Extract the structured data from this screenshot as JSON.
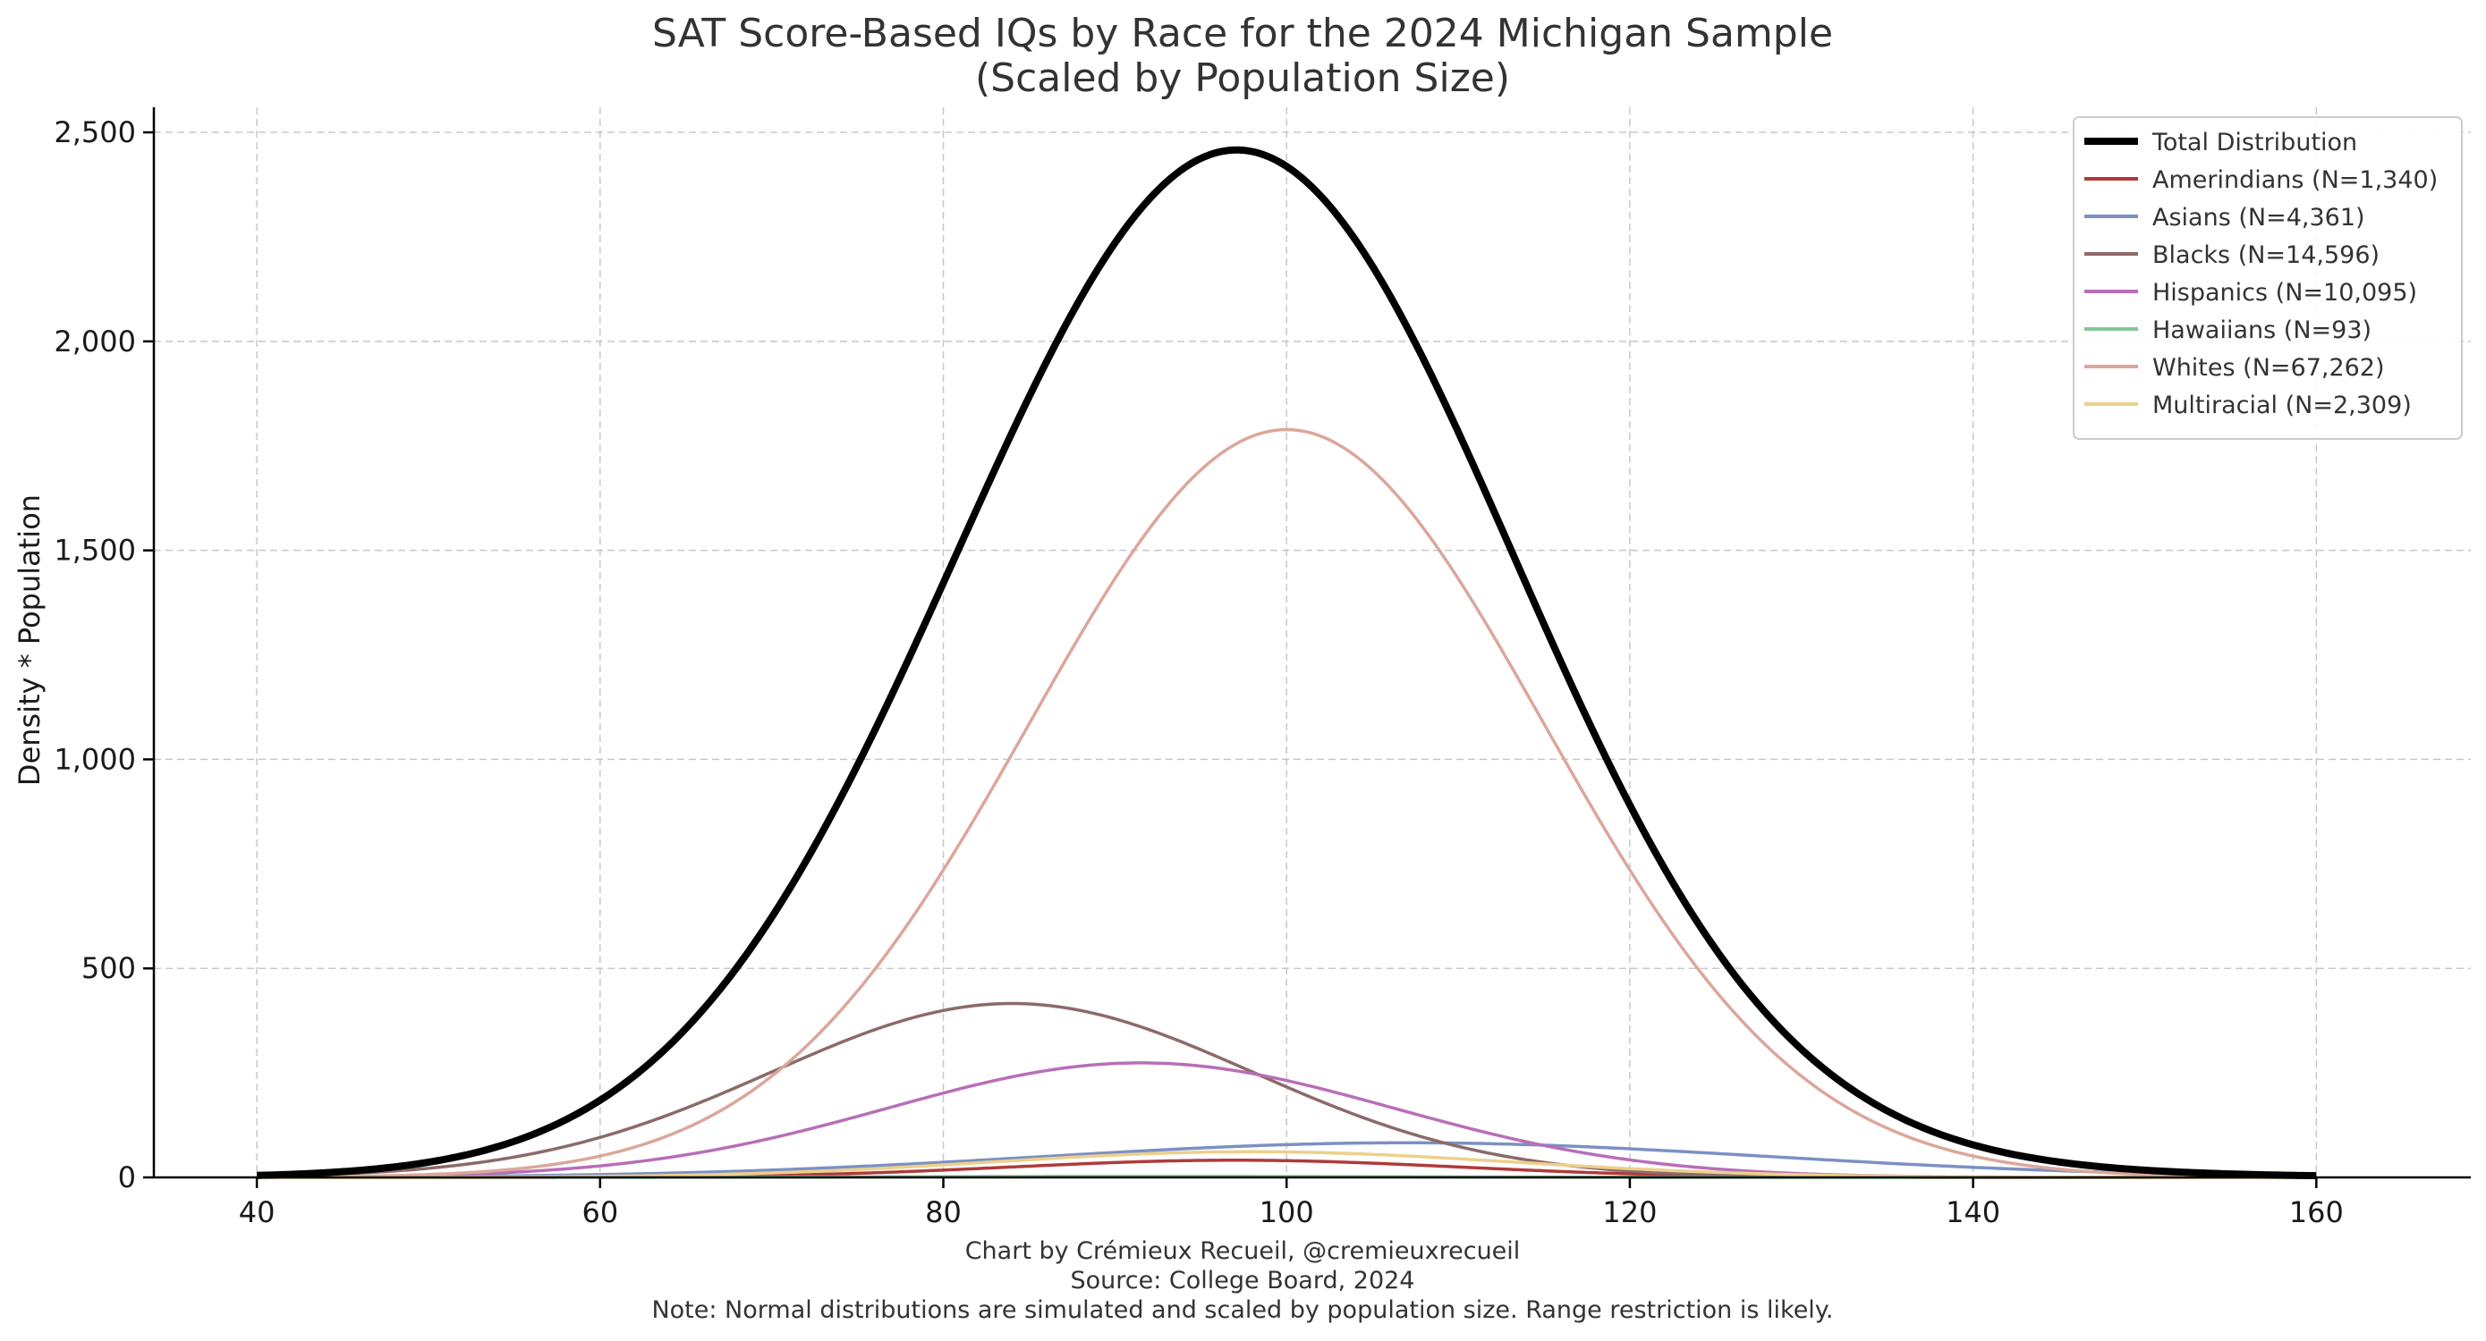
{
  "chart_data": {
    "type": "line",
    "title": [
      "SAT Score-Based IQs by Race for the 2024 Michigan Sample",
      "(Scaled by Population Size)"
    ],
    "ylabel": "Density * Population",
    "xlabel": "",
    "xlim": [
      34,
      169
    ],
    "ylim": [
      0,
      2560
    ],
    "xticks": [
      40,
      60,
      80,
      100,
      120,
      140,
      160
    ],
    "xtick_labels": [
      "40",
      "60",
      "80",
      "100",
      "120",
      "140",
      "160"
    ],
    "yticks": [
      0,
      500,
      1000,
      1500,
      2000,
      2500
    ],
    "ytick_labels": [
      "0",
      "500",
      "1,000",
      "1,500",
      "2,000",
      "2,500"
    ],
    "grid": true,
    "legend_position": "top-right",
    "x_range": [
      40,
      160
    ],
    "series": [
      {
        "name": "Total Distribution",
        "color": "#000000",
        "total": true
      },
      {
        "name": "Amerindians (N=1,340)",
        "color": "#b03a3a",
        "n": 1340,
        "mean": 97,
        "sd": 13
      },
      {
        "name": "Asians (N=4,361)",
        "color": "#7b90c4",
        "n": 4361,
        "mean": 107,
        "sd": 21
      },
      {
        "name": "Blacks (N=14,596)",
        "color": "#8c6a6a",
        "n": 14596,
        "mean": 84,
        "sd": 14
      },
      {
        "name": "Hispanics (N=10,095)",
        "color": "#b86eb8",
        "n": 10095,
        "mean": 91.5,
        "sd": 14.7
      },
      {
        "name": "Hawaiians (N=93)",
        "color": "#86c49a",
        "n": 93,
        "mean": 92,
        "sd": 15
      },
      {
        "name": "Whites (N=67,262)",
        "color": "#dba79b",
        "n": 67262,
        "mean": 100,
        "sd": 15
      },
      {
        "name": "Multiracial (N=2,309)",
        "color": "#ecd08c",
        "n": 2309,
        "mean": 98,
        "sd": 15
      }
    ]
  },
  "footer": {
    "credit": "Chart by Crémieux Recueil, @cremieuxrecueil",
    "source": "Source: College Board, 2024",
    "note": "Note: Normal distributions are simulated and scaled by population size. Range restriction is likely."
  }
}
